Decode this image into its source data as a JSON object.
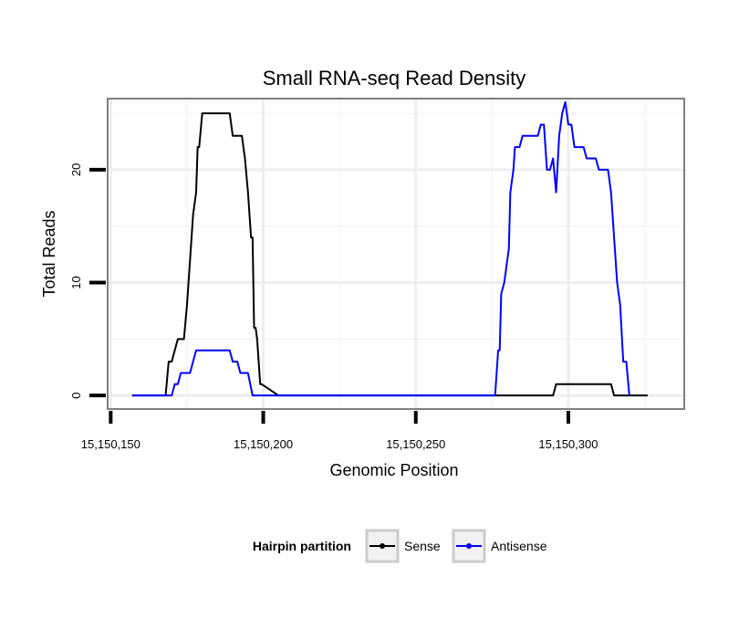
{
  "chart_data": {
    "type": "line",
    "title": "Small RNA-seq Read Density",
    "xlabel": "Genomic Position",
    "ylabel": "Total Reads",
    "xlim": [
      15150149,
      15150338
    ],
    "ylim": [
      -1.2,
      26.3
    ],
    "x_ticks": [
      15150150,
      15150200,
      15150250,
      15150300
    ],
    "x_tick_labels": [
      "15,150,150",
      "15,150,200",
      "15,150,250",
      "15,150,300"
    ],
    "y_ticks": [
      0,
      10,
      20
    ],
    "y_tick_labels": [
      "0",
      "10",
      "20"
    ],
    "grid": true,
    "legend": {
      "title": "Hairpin partition",
      "position": "bottom",
      "entries": [
        {
          "name": "Sense",
          "color": "#000000"
        },
        {
          "name": "Antisense",
          "color": "#0000ff"
        }
      ]
    },
    "series": [
      {
        "name": "Sense",
        "color": "#000000",
        "points": [
          [
            15150157,
            0
          ],
          [
            15150168,
            0
          ],
          [
            15150169,
            3
          ],
          [
            15150170,
            3
          ],
          [
            15150172,
            5
          ],
          [
            15150174,
            5
          ],
          [
            15150175,
            8
          ],
          [
            15150176,
            12
          ],
          [
            15150177,
            16
          ],
          [
            15150178,
            18
          ],
          [
            15150178.5,
            22
          ],
          [
            15150179,
            22
          ],
          [
            15150180,
            25
          ],
          [
            15150189,
            25
          ],
          [
            15150190,
            23
          ],
          [
            15150193,
            23
          ],
          [
            15150194,
            21
          ],
          [
            15150195,
            18
          ],
          [
            15150196,
            14
          ],
          [
            15150196.5,
            14
          ],
          [
            15150197,
            6
          ],
          [
            15150197.5,
            6
          ],
          [
            15150198,
            5
          ],
          [
            15150199,
            1
          ],
          [
            15150199.5,
            1
          ],
          [
            15150205,
            0
          ],
          [
            15150295,
            0
          ],
          [
            15150296,
            1
          ],
          [
            15150314,
            1
          ],
          [
            15150315,
            0
          ],
          [
            15150326,
            0
          ]
        ]
      },
      {
        "name": "Antisense",
        "color": "#0000ff",
        "points": [
          [
            15150157,
            0
          ],
          [
            15150170,
            0
          ],
          [
            15150171,
            1
          ],
          [
            15150172,
            1
          ],
          [
            15150173,
            2
          ],
          [
            15150176,
            2
          ],
          [
            15150177,
            3
          ],
          [
            15150178,
            4
          ],
          [
            15150189,
            4
          ],
          [
            15150190,
            3
          ],
          [
            15150191.5,
            3
          ],
          [
            15150192.5,
            2
          ],
          [
            15150195,
            2
          ],
          [
            15150196.5,
            0
          ],
          [
            15150276,
            0
          ],
          [
            15150276.5,
            2
          ],
          [
            15150277,
            4
          ],
          [
            15150277.5,
            4
          ],
          [
            15150278,
            9
          ],
          [
            15150279,
            10
          ],
          [
            15150280,
            12
          ],
          [
            15150280.5,
            13
          ],
          [
            15150281,
            18
          ],
          [
            15150282,
            20
          ],
          [
            15150282.5,
            22
          ],
          [
            15150284,
            22
          ],
          [
            15150285,
            23
          ],
          [
            15150290,
            23
          ],
          [
            15150291,
            24
          ],
          [
            15150292,
            24
          ],
          [
            15150292.5,
            22
          ],
          [
            15150293,
            20
          ],
          [
            15150294,
            20
          ],
          [
            15150295,
            21
          ],
          [
            15150296,
            18
          ],
          [
            15150297,
            23
          ],
          [
            15150298,
            25
          ],
          [
            15150299,
            26
          ],
          [
            15150300,
            24
          ],
          [
            15150301,
            24
          ],
          [
            15150302,
            22
          ],
          [
            15150305,
            22
          ],
          [
            15150306,
            21
          ],
          [
            15150309,
            21
          ],
          [
            15150310,
            20
          ],
          [
            15150313,
            20
          ],
          [
            15150314,
            18
          ],
          [
            15150315,
            14
          ],
          [
            15150316,
            10
          ],
          [
            15150317,
            8
          ],
          [
            15150318,
            3
          ],
          [
            15150319,
            3
          ],
          [
            15150320,
            0
          ]
        ]
      }
    ]
  }
}
